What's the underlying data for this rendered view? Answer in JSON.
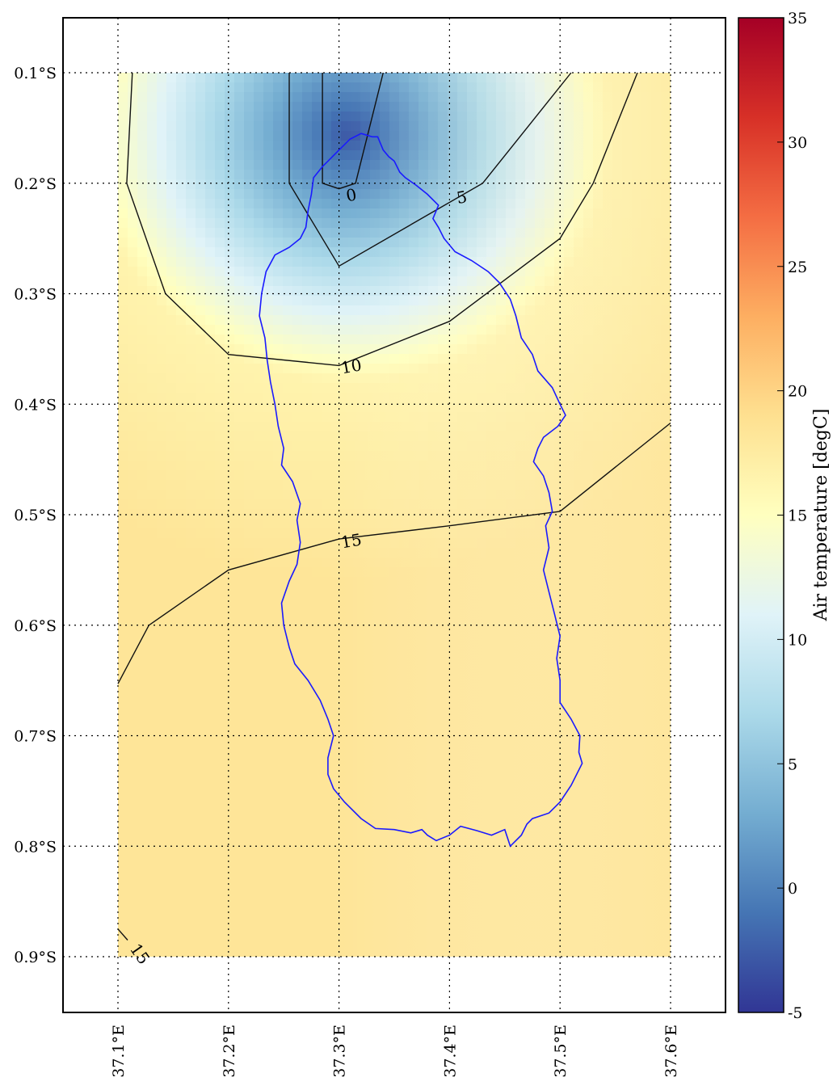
{
  "chart_data": {
    "type": "heatmap",
    "title": "",
    "xlabel": "",
    "ylabel": "",
    "xlim": [
      37.05,
      37.65
    ],
    "ylim": [
      -0.95,
      -0.05
    ],
    "grid": true,
    "x_ticks": [
      {
        "value": 37.1,
        "label": "37.1°E"
      },
      {
        "value": 37.2,
        "label": "37.2°E"
      },
      {
        "value": 37.3,
        "label": "37.3°E"
      },
      {
        "value": 37.4,
        "label": "37.4°E"
      },
      {
        "value": 37.5,
        "label": "37.5°E"
      },
      {
        "value": 37.6,
        "label": "37.6°E"
      }
    ],
    "y_ticks": [
      {
        "value": -0.1,
        "label": "0.1°S"
      },
      {
        "value": -0.2,
        "label": "0.2°S"
      },
      {
        "value": -0.3,
        "label": "0.3°S"
      },
      {
        "value": -0.4,
        "label": "0.4°S"
      },
      {
        "value": -0.5,
        "label": "0.5°S"
      },
      {
        "value": -0.6,
        "label": "0.6°S"
      },
      {
        "value": -0.7,
        "label": "0.7°S"
      },
      {
        "value": -0.8,
        "label": "0.8°S"
      },
      {
        "value": -0.9,
        "label": "0.9°S"
      }
    ],
    "field_extent": {
      "lon": [
        37.1,
        37.6
      ],
      "lat": [
        -0.9,
        -0.1
      ]
    },
    "colorbar": {
      "label": "Air temperature [degC]",
      "range": [
        -5,
        35
      ],
      "ticks": [
        "35",
        "30",
        "25",
        "20",
        "15",
        "10",
        "5",
        "0",
        "-5"
      ],
      "colors": [
        "#313695",
        "#4575b4",
        "#74add1",
        "#abd9e9",
        "#e0f3f8",
        "#ffffbf",
        "#fee090",
        "#fdae61",
        "#f46d43",
        "#d73027",
        "#a50026"
      ]
    },
    "contours": [
      {
        "level": 0,
        "label": "0",
        "label_at": [
          37.3,
          -0.21
        ],
        "points": [
          [
            37.285,
            -0.1
          ],
          [
            37.285,
            -0.2
          ],
          [
            37.3,
            -0.205
          ],
          [
            37.315,
            -0.2
          ],
          [
            37.34,
            -0.1
          ]
        ]
      },
      {
        "level": 5,
        "label": "5",
        "label_at": [
          37.4,
          -0.212
        ],
        "points": [
          [
            37.255,
            -0.1
          ],
          [
            37.255,
            -0.2
          ],
          [
            37.3,
            -0.275
          ],
          [
            37.43,
            -0.2
          ],
          [
            37.51,
            -0.1
          ]
        ]
      },
      {
        "level": 10,
        "label": "10",
        "label_at": [
          37.3,
          -0.365
        ],
        "points": [
          [
            37.113,
            -0.1
          ],
          [
            37.108,
            -0.2
          ],
          [
            37.143,
            -0.3
          ],
          [
            37.2,
            -0.355
          ],
          [
            37.3,
            -0.365
          ],
          [
            37.4,
            -0.325
          ],
          [
            37.5,
            -0.25
          ],
          [
            37.53,
            -0.2
          ],
          [
            37.57,
            -0.1
          ]
        ]
      },
      {
        "level": 15,
        "label": "15",
        "label_at": [
          37.3,
          -0.523
        ],
        "points": [
          [
            37.1,
            -0.653
          ],
          [
            37.128,
            -0.6
          ],
          [
            37.2,
            -0.55
          ],
          [
            37.3,
            -0.522
          ],
          [
            37.4,
            -0.51
          ],
          [
            37.5,
            -0.497
          ],
          [
            37.6,
            -0.417
          ]
        ]
      }
    ],
    "corner_label": {
      "text": "15",
      "at": [
        37.12,
        -0.9
      ]
    },
    "outline_color": "#1a1aff",
    "outline": [
      [
        37.32,
        -0.155
      ],
      [
        37.33,
        -0.158
      ],
      [
        37.335,
        -0.158
      ],
      [
        37.34,
        -0.17
      ],
      [
        37.345,
        -0.176
      ],
      [
        37.35,
        -0.18
      ],
      [
        37.355,
        -0.19
      ],
      [
        37.36,
        -0.195
      ],
      [
        37.37,
        -0.202
      ],
      [
        37.38,
        -0.21
      ],
      [
        37.39,
        -0.22
      ],
      [
        37.385,
        -0.232
      ],
      [
        37.39,
        -0.24
      ],
      [
        37.395,
        -0.25
      ],
      [
        37.405,
        -0.262
      ],
      [
        37.42,
        -0.27
      ],
      [
        37.435,
        -0.28
      ],
      [
        37.445,
        -0.29
      ],
      [
        37.455,
        -0.305
      ],
      [
        37.46,
        -0.32
      ],
      [
        37.465,
        -0.34
      ],
      [
        37.475,
        -0.355
      ],
      [
        37.48,
        -0.37
      ],
      [
        37.493,
        -0.385
      ],
      [
        37.5,
        -0.4
      ],
      [
        37.505,
        -0.41
      ],
      [
        37.498,
        -0.42
      ],
      [
        37.485,
        -0.43
      ],
      [
        37.48,
        -0.44
      ],
      [
        37.476,
        -0.452
      ],
      [
        37.485,
        -0.465
      ],
      [
        37.49,
        -0.48
      ],
      [
        37.493,
        -0.497
      ],
      [
        37.487,
        -0.51
      ],
      [
        37.49,
        -0.53
      ],
      [
        37.485,
        -0.55
      ],
      [
        37.49,
        -0.57
      ],
      [
        37.495,
        -0.59
      ],
      [
        37.5,
        -0.61
      ],
      [
        37.497,
        -0.63
      ],
      [
        37.5,
        -0.65
      ],
      [
        37.5,
        -0.67
      ],
      [
        37.51,
        -0.685
      ],
      [
        37.518,
        -0.7
      ],
      [
        37.517,
        -0.715
      ],
      [
        37.52,
        -0.725
      ],
      [
        37.51,
        -0.745
      ],
      [
        37.5,
        -0.76
      ],
      [
        37.49,
        -0.77
      ],
      [
        37.475,
        -0.775
      ],
      [
        37.47,
        -0.78
      ],
      [
        37.465,
        -0.79
      ],
      [
        37.455,
        -0.8
      ],
      [
        37.45,
        -0.785
      ],
      [
        37.438,
        -0.79
      ],
      [
        37.425,
        -0.786
      ],
      [
        37.41,
        -0.782
      ],
      [
        37.4,
        -0.79
      ],
      [
        37.388,
        -0.795
      ],
      [
        37.38,
        -0.79
      ],
      [
        37.375,
        -0.785
      ],
      [
        37.365,
        -0.788
      ],
      [
        37.35,
        -0.785
      ],
      [
        37.333,
        -0.784
      ],
      [
        37.32,
        -0.775
      ],
      [
        37.305,
        -0.76
      ],
      [
        37.295,
        -0.748
      ],
      [
        37.29,
        -0.735
      ],
      [
        37.29,
        -0.72
      ],
      [
        37.295,
        -0.7
      ],
      [
        37.29,
        -0.685
      ],
      [
        37.283,
        -0.668
      ],
      [
        37.272,
        -0.65
      ],
      [
        37.26,
        -0.635
      ],
      [
        37.255,
        -0.62
      ],
      [
        37.25,
        -0.6
      ],
      [
        37.248,
        -0.58
      ],
      [
        37.255,
        -0.56
      ],
      [
        37.262,
        -0.545
      ],
      [
        37.265,
        -0.525
      ],
      [
        37.262,
        -0.505
      ],
      [
        37.265,
        -0.49
      ],
      [
        37.258,
        -0.47
      ],
      [
        37.248,
        -0.455
      ],
      [
        37.25,
        -0.44
      ],
      [
        37.245,
        -0.42
      ],
      [
        37.242,
        -0.4
      ],
      [
        37.238,
        -0.38
      ],
      [
        37.235,
        -0.36
      ],
      [
        37.233,
        -0.34
      ],
      [
        37.228,
        -0.32
      ],
      [
        37.23,
        -0.3
      ],
      [
        37.234,
        -0.28
      ],
      [
        37.242,
        -0.265
      ],
      [
        37.255,
        -0.258
      ],
      [
        37.265,
        -0.25
      ],
      [
        37.27,
        -0.24
      ],
      [
        37.272,
        -0.225
      ],
      [
        37.275,
        -0.21
      ],
      [
        37.277,
        -0.195
      ],
      [
        37.285,
        -0.185
      ],
      [
        37.29,
        -0.18
      ],
      [
        37.3,
        -0.17
      ],
      [
        37.31,
        -0.16
      ],
      [
        37.32,
        -0.155
      ]
    ]
  }
}
